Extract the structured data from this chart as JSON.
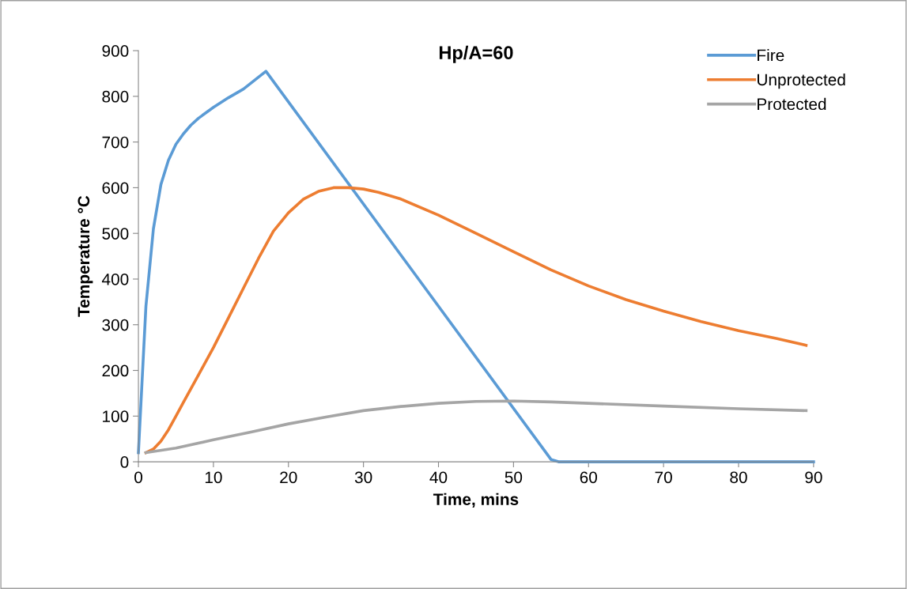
{
  "chart_data": {
    "type": "line",
    "title": "Hp/A=60",
    "xlabel": "Time, mins",
    "ylabel": "Temperature °C",
    "xlim": [
      0,
      90
    ],
    "xticks": [
      0,
      10,
      20,
      30,
      40,
      50,
      60,
      70,
      80,
      90
    ],
    "ylim": [
      0,
      900
    ],
    "yticks": [
      0,
      100,
      200,
      300,
      400,
      500,
      600,
      700,
      800,
      900
    ],
    "grid": false,
    "legend": "top right",
    "marker": "none",
    "line_style": "solid",
    "series": [
      {
        "name": "Fire",
        "color": "#5b9bd5",
        "x": [
          0,
          1,
          2,
          3,
          4,
          5,
          6,
          7,
          8,
          10,
          12,
          14,
          17,
          55,
          56,
          90
        ],
        "values": [
          20,
          340,
          510,
          607,
          660,
          695,
          718,
          737,
          752,
          776,
          797,
          816,
          855,
          5,
          0,
          0
        ]
      },
      {
        "name": "Unprotected",
        "color": "#ed7d31",
        "x": [
          1,
          2,
          3,
          4,
          5,
          6,
          8,
          10,
          12,
          14,
          16,
          18,
          20,
          22,
          24,
          26,
          28,
          30,
          32,
          35,
          40,
          45,
          50,
          55,
          60,
          65,
          70,
          75,
          80,
          85,
          89
        ],
        "values": [
          20,
          28,
          45,
          70,
          100,
          130,
          190,
          250,
          315,
          380,
          445,
          505,
          545,
          575,
          592,
          600,
          600,
          597,
          590,
          575,
          540,
          500,
          460,
          420,
          385,
          355,
          330,
          307,
          287,
          270,
          255
        ]
      },
      {
        "name": "Protected",
        "color": "#a5a5a5",
        "x": [
          1,
          5,
          10,
          15,
          20,
          25,
          30,
          35,
          40,
          45,
          50,
          55,
          60,
          70,
          80,
          89
        ],
        "values": [
          20,
          30,
          48,
          65,
          83,
          98,
          112,
          121,
          128,
          132,
          133,
          131,
          128,
          122,
          116,
          112
        ]
      }
    ]
  }
}
